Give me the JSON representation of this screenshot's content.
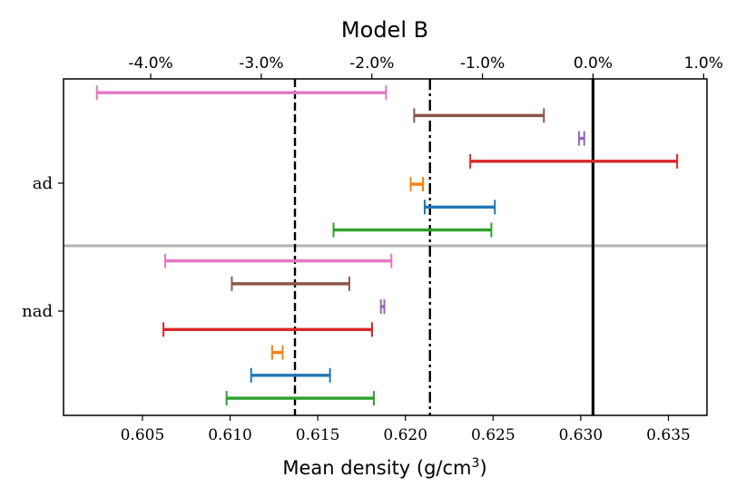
{
  "chart_data": {
    "type": "errorbar",
    "title": "Model B",
    "xlabel": "Mean density (g/cm",
    "xlabel_sup": "3",
    "xlabel_close": ")",
    "xlim": [
      0.6005,
      0.6372
    ],
    "xticks": [
      {
        "value": 0.605,
        "label": "0.605"
      },
      {
        "value": 0.61,
        "label": "0.610"
      },
      {
        "value": 0.615,
        "label": "0.615"
      },
      {
        "value": 0.62,
        "label": "0.620"
      },
      {
        "value": 0.625,
        "label": "0.625"
      },
      {
        "value": 0.63,
        "label": "0.630"
      },
      {
        "value": 0.635,
        "label": "0.635"
      }
    ],
    "top_axis": {
      "reference": 0.6307,
      "ticks": [
        {
          "value": -4.0,
          "label": "-4.0%"
        },
        {
          "value": -3.0,
          "label": "-3.0%"
        },
        {
          "value": -2.0,
          "label": "-2.0%"
        },
        {
          "value": -1.0,
          "label": "-1.0%"
        },
        {
          "value": 0.0,
          "label": "0.0%"
        },
        {
          "value": 1.0,
          "label": "1.0%"
        }
      ]
    },
    "groups": [
      {
        "label": "ad",
        "bars": [
          {
            "color": "#e377c2",
            "lo": 0.6024,
            "hi": 0.6189
          },
          {
            "color": "#8c564b",
            "lo": 0.6205,
            "hi": 0.6279
          },
          {
            "color": "#9467bd",
            "lo": 0.6299,
            "hi": 0.6302
          },
          {
            "color": "#d62728",
            "lo": 0.6237,
            "hi": 0.6355
          },
          {
            "color": "#ff7f0e",
            "lo": 0.6203,
            "hi": 0.621
          },
          {
            "color": "#1f77b4",
            "lo": 0.6211,
            "hi": 0.6251
          },
          {
            "color": "#2ca02c",
            "lo": 0.6159,
            "hi": 0.6249
          }
        ]
      },
      {
        "label": "nad",
        "bars": [
          {
            "color": "#e377c2",
            "lo": 0.6063,
            "hi": 0.6192
          },
          {
            "color": "#8c564b",
            "lo": 0.6101,
            "hi": 0.6168
          },
          {
            "color": "#9467bd",
            "lo": 0.6186,
            "hi": 0.6188
          },
          {
            "color": "#d62728",
            "lo": 0.6062,
            "hi": 0.6181
          },
          {
            "color": "#ff7f0e",
            "lo": 0.6124,
            "hi": 0.613
          },
          {
            "color": "#1f77b4",
            "lo": 0.6112,
            "hi": 0.6157
          },
          {
            "color": "#2ca02c",
            "lo": 0.6098,
            "hi": 0.6182
          }
        ]
      }
    ],
    "reference_lines": [
      {
        "value": 0.6307,
        "style": "solid"
      },
      {
        "value": 0.6214,
        "style": "dashdot"
      },
      {
        "value": 0.6137,
        "style": "dashed"
      }
    ]
  }
}
